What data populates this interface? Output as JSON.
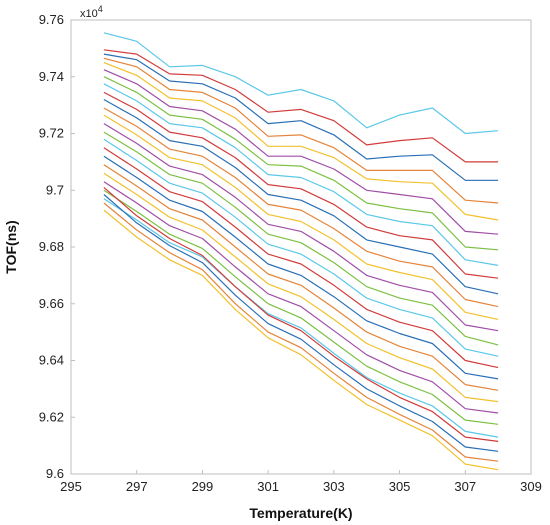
{
  "chart_data": {
    "type": "line",
    "xlabel": "Temperature(K)",
    "ylabel": "TOF(ns)",
    "y_multiplier": "x10",
    "y_multiplier_exponent": "4",
    "xlim": [
      295,
      309
    ],
    "ylim": [
      9.6,
      9.76
    ],
    "x_ticks": [
      295,
      297,
      299,
      301,
      303,
      305,
      307,
      309
    ],
    "y_ticks": [
      9.6,
      9.62,
      9.64,
      9.66,
      9.68,
      9.7,
      9.72,
      9.74,
      9.76
    ],
    "grid": false,
    "legend": "none",
    "x": [
      296,
      297,
      298,
      299,
      300,
      301,
      302,
      303,
      304,
      305,
      306,
      307,
      308
    ],
    "series": [
      {
        "color": "#5bc8e8",
        "values": [
          9.7555,
          9.7525,
          9.7435,
          9.744,
          9.74,
          9.7335,
          9.7355,
          9.7315,
          9.722,
          9.7265,
          9.729,
          9.72,
          9.721
        ]
      },
      {
        "color": "#d23b3b",
        "values": [
          9.7495,
          9.748,
          9.741,
          9.7405,
          9.7355,
          9.7275,
          9.7285,
          9.7245,
          9.716,
          9.7175,
          9.7185,
          9.71,
          9.71
        ]
      },
      {
        "color": "#2a6fb5",
        "values": [
          9.748,
          9.746,
          9.7385,
          9.7375,
          9.7325,
          9.7235,
          9.7245,
          9.7195,
          9.711,
          9.712,
          9.7125,
          9.7035,
          9.7035
        ]
      },
      {
        "color": "#e4843a",
        "values": [
          9.7465,
          9.7435,
          9.7355,
          9.7345,
          9.729,
          9.719,
          9.7195,
          9.715,
          9.707,
          9.707,
          9.707,
          9.6965,
          9.6955
        ]
      },
      {
        "color": "#f2c12e",
        "values": [
          9.745,
          9.7405,
          9.7325,
          9.7315,
          9.7255,
          9.7155,
          9.7155,
          9.7115,
          9.704,
          9.703,
          9.7025,
          9.6915,
          9.6895
        ]
      },
      {
        "color": "#a04ea6",
        "values": [
          9.7425,
          9.7375,
          9.7295,
          9.728,
          9.7215,
          9.712,
          9.712,
          9.7075,
          9.7,
          9.6985,
          9.697,
          9.6855,
          9.6845
        ]
      },
      {
        "color": "#7cc043",
        "values": [
          9.74,
          9.7345,
          9.7265,
          9.725,
          9.718,
          9.709,
          9.7085,
          9.7035,
          9.6955,
          9.6935,
          9.692,
          9.68,
          9.679
        ]
      },
      {
        "color": "#5bc8e8",
        "values": [
          9.7375,
          9.7315,
          9.7235,
          9.722,
          9.715,
          9.7055,
          9.7045,
          9.6995,
          9.6915,
          9.689,
          9.6875,
          9.6755,
          9.6735
        ]
      },
      {
        "color": "#d23b3b",
        "values": [
          9.7345,
          9.7285,
          9.7205,
          9.7185,
          9.7115,
          9.702,
          9.7005,
          9.695,
          9.687,
          9.684,
          9.6825,
          9.6705,
          9.669
        ]
      },
      {
        "color": "#2a6fb5",
        "values": [
          9.732,
          9.7255,
          9.7175,
          9.7155,
          9.708,
          9.6985,
          9.6965,
          9.691,
          9.6825,
          9.68,
          9.6775,
          9.666,
          9.6635
        ]
      },
      {
        "color": "#e4843a",
        "values": [
          9.729,
          9.7225,
          9.7145,
          9.712,
          9.7045,
          9.695,
          9.693,
          9.6865,
          9.6785,
          9.675,
          9.673,
          9.6615,
          9.659
        ]
      },
      {
        "color": "#f2c12e",
        "values": [
          9.7265,
          9.7195,
          9.7115,
          9.709,
          9.701,
          9.6915,
          9.689,
          9.6825,
          9.674,
          9.671,
          9.6685,
          9.657,
          9.6545
        ]
      },
      {
        "color": "#a04ea6",
        "values": [
          9.7235,
          9.7165,
          9.7085,
          9.7055,
          9.6975,
          9.688,
          9.6855,
          9.6785,
          9.67,
          9.6665,
          9.664,
          9.6525,
          9.6505
        ]
      },
      {
        "color": "#7cc043",
        "values": [
          9.7205,
          9.7135,
          9.7055,
          9.7025,
          9.694,
          9.6845,
          9.6815,
          9.6745,
          9.666,
          9.662,
          9.6595,
          9.6485,
          9.6455
        ]
      },
      {
        "color": "#5bc8e8",
        "values": [
          9.718,
          9.7105,
          9.7025,
          9.699,
          9.6905,
          9.681,
          9.6775,
          9.6705,
          9.662,
          9.658,
          9.655,
          9.644,
          9.6415
        ]
      },
      {
        "color": "#d23b3b",
        "values": [
          9.715,
          9.7075,
          9.6995,
          9.696,
          9.687,
          9.6775,
          9.674,
          9.6665,
          9.658,
          9.6535,
          9.6505,
          9.64,
          9.6375
        ]
      },
      {
        "color": "#2a6fb5",
        "values": [
          9.712,
          9.7045,
          9.6965,
          9.6925,
          9.6835,
          9.674,
          9.67,
          9.6625,
          9.654,
          9.6495,
          9.646,
          9.6355,
          9.6335
        ]
      },
      {
        "color": "#e4843a",
        "values": [
          9.709,
          9.7015,
          9.6935,
          9.6895,
          9.68,
          9.6705,
          9.6665,
          9.6585,
          9.65,
          9.645,
          9.6415,
          9.6315,
          9.6295
        ]
      },
      {
        "color": "#f2c12e",
        "values": [
          9.706,
          9.6985,
          9.6905,
          9.686,
          9.6765,
          9.667,
          9.6625,
          9.6545,
          9.646,
          9.641,
          9.637,
          9.627,
          9.6255
        ]
      },
      {
        "color": "#a04ea6",
        "values": [
          9.703,
          9.6955,
          9.6875,
          9.683,
          9.673,
          9.6635,
          9.659,
          9.6505,
          9.642,
          9.6365,
          9.6325,
          9.623,
          9.6215
        ]
      },
      {
        "color": "#7cc043",
        "values": [
          9.7,
          9.6925,
          9.6845,
          9.6795,
          9.6695,
          9.66,
          9.655,
          9.6465,
          9.638,
          9.6325,
          9.628,
          9.619,
          9.6175
        ]
      },
      {
        "color": "#5bc8e8",
        "values": [
          9.697,
          9.6895,
          9.6815,
          9.6765,
          9.666,
          9.6565,
          9.6515,
          9.6425,
          9.634,
          9.6285,
          9.624,
          9.615,
          9.613
        ]
      },
      {
        "color": "#d23b3b",
        "values": [
          9.701,
          9.691,
          9.683,
          9.677,
          9.666,
          9.656,
          9.6505,
          9.6415,
          9.6335,
          9.627,
          9.622,
          9.613,
          9.6115
        ]
      },
      {
        "color": "#2a6fb5",
        "values": [
          9.6985,
          9.6885,
          9.6805,
          9.6745,
          9.663,
          9.653,
          9.6475,
          9.6385,
          9.63,
          9.624,
          9.6185,
          9.6095,
          9.608
        ]
      },
      {
        "color": "#e4843a",
        "values": [
          9.6955,
          9.686,
          9.678,
          9.672,
          9.66,
          9.65,
          9.6445,
          9.6355,
          9.627,
          9.621,
          9.6155,
          9.606,
          9.6045
        ]
      },
      {
        "color": "#f2c12e",
        "values": [
          9.693,
          9.6835,
          9.6755,
          9.67,
          9.658,
          9.648,
          9.642,
          9.633,
          9.6245,
          9.619,
          9.6135,
          9.6035,
          9.6015
        ]
      }
    ]
  }
}
